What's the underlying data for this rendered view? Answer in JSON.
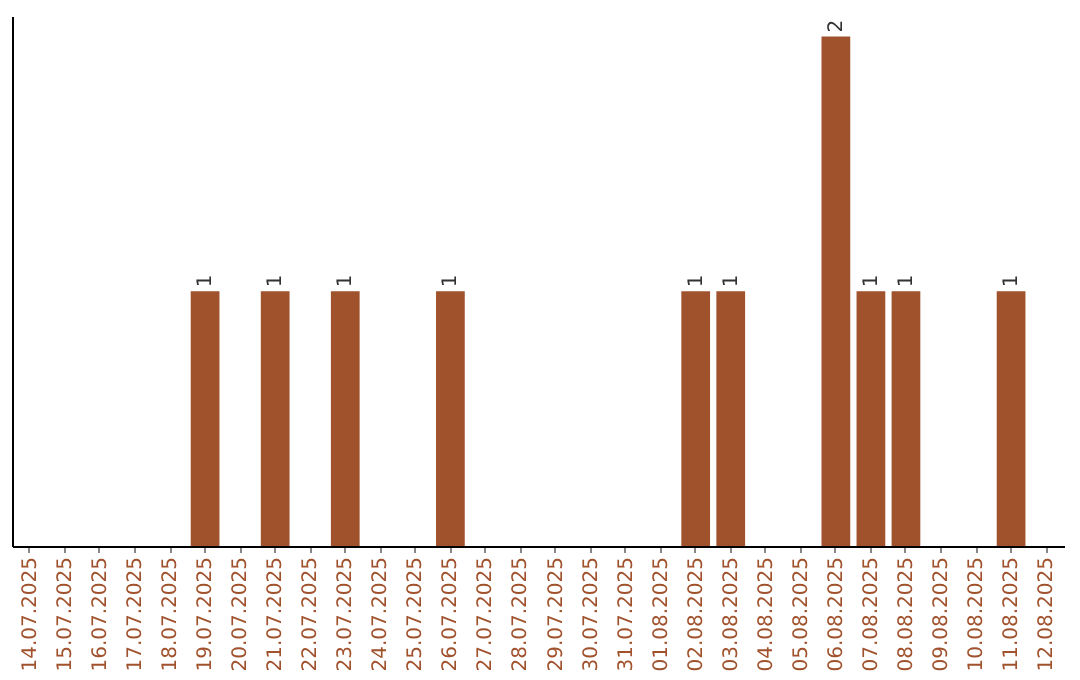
{
  "chart_data": {
    "type": "bar",
    "categories": [
      "14.07.2025",
      "15.07.2025",
      "16.07.2025",
      "17.07.2025",
      "18.07.2025",
      "19.07.2025",
      "20.07.2025",
      "21.07.2025",
      "22.07.2025",
      "23.07.2025",
      "24.07.2025",
      "25.07.2025",
      "26.07.2025",
      "27.07.2025",
      "28.07.2025",
      "29.07.2025",
      "30.07.2025",
      "31.07.2025",
      "01.08.2025",
      "02.08.2025",
      "03.08.2025",
      "04.08.2025",
      "05.08.2025",
      "06.08.2025",
      "07.08.2025",
      "08.08.2025",
      "09.08.2025",
      "10.08.2025",
      "11.08.2025",
      "12.08.2025"
    ],
    "values": [
      0,
      0,
      0,
      0,
      0,
      1,
      0,
      1,
      0,
      1,
      0,
      0,
      1,
      0,
      0,
      0,
      0,
      0,
      0,
      1,
      1,
      0,
      0,
      2,
      1,
      1,
      0,
      0,
      1,
      0
    ],
    "value_labels": [
      null,
      null,
      null,
      null,
      null,
      "1",
      null,
      "1",
      null,
      "1",
      null,
      null,
      "1",
      null,
      null,
      null,
      null,
      null,
      null,
      "1",
      "1",
      null,
      null,
      "2",
      "1",
      "1",
      null,
      null,
      "1",
      null
    ],
    "color": "#a0522d",
    "ylim": [
      0,
      2.08
    ],
    "tick_labels": "x",
    "grid": false
  }
}
